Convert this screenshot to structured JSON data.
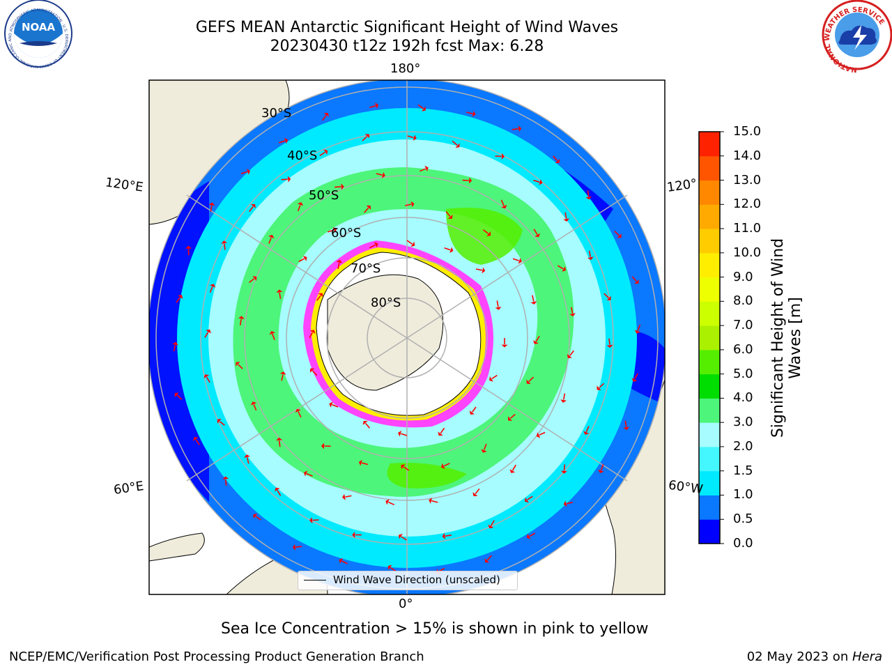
{
  "title": {
    "line1": "GEFS MEAN Antarctic Significant Height of Wind Waves",
    "line2": "20230430 t12z 192h fcst   Max: 6.28"
  },
  "logos": {
    "noaa_text": "NOAA",
    "noaa_ring": "NATIONAL OCEANIC AND ATMOSPHERIC ADMINISTRATION · U.S. DEPARTMENT OF COMMERCE",
    "nws_ring": "NATIONAL WEATHER SERVICE"
  },
  "map": {
    "projection": "south-polar-stereographic",
    "longitude_labels": {
      "top": "180°",
      "bottom": "0°",
      "left_upper": "120°E",
      "left_lower": "60°E",
      "right_upper": "120°",
      "right_lower": "60°W"
    },
    "latitude_labels": [
      "30°S",
      "40°S",
      "50°S",
      "60°S",
      "70°S",
      "80°S"
    ],
    "legend_label": "Wind Wave Direction (unscaled)",
    "colors": {
      "land": "#efecdc",
      "sea_ice": "#ff44ff",
      "arrow": "#ff0000",
      "grid": "#b0b0b0"
    }
  },
  "colorbar": {
    "label": "Significant Height of Wind Waves [m]",
    "ticks": [
      "0.0",
      "0.5",
      "1.0",
      "1.5",
      "2.0",
      "3.0",
      "4.0",
      "5.0",
      "6.0",
      "7.0",
      "8.0",
      "9.0",
      "10.0",
      "11.0",
      "12.0",
      "13.0",
      "14.0",
      "15.0"
    ],
    "colors": [
      "#0000ff",
      "#0a78ff",
      "#00eaff",
      "#44f7ff",
      "#a6fcff",
      "#4df57a",
      "#00dd00",
      "#55ee00",
      "#aaf000",
      "#ccff00",
      "#eeff00",
      "#ffee00",
      "#ffcc00",
      "#ffaa00",
      "#ff8800",
      "#ff5500",
      "#ff2200"
    ]
  },
  "notes": {
    "sea_ice": "Sea Ice Concentration > 15% is shown in pink to yellow"
  },
  "footer": {
    "left": "NCEP/EMC/Verification Post Processing Product Generation Branch",
    "right_date": "02 May 2023 on ",
    "right_host": "Hera"
  }
}
